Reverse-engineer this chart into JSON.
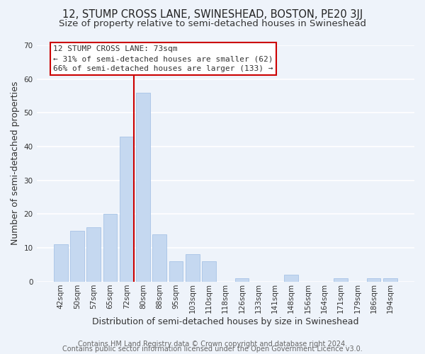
{
  "title": "12, STUMP CROSS LANE, SWINESHEAD, BOSTON, PE20 3JJ",
  "subtitle": "Size of property relative to semi-detached houses in Swineshead",
  "xlabel": "Distribution of semi-detached houses by size in Swineshead",
  "ylabel": "Number of semi-detached properties",
  "footer_line1": "Contains HM Land Registry data © Crown copyright and database right 2024.",
  "footer_line2": "Contains public sector information licensed under the Open Government Licence v3.0.",
  "bin_labels": [
    "42sqm",
    "50sqm",
    "57sqm",
    "65sqm",
    "72sqm",
    "80sqm",
    "88sqm",
    "95sqm",
    "103sqm",
    "110sqm",
    "118sqm",
    "126sqm",
    "133sqm",
    "141sqm",
    "148sqm",
    "156sqm",
    "164sqm",
    "171sqm",
    "179sqm",
    "186sqm",
    "194sqm"
  ],
  "bar_heights": [
    11,
    15,
    16,
    20,
    43,
    56,
    14,
    6,
    8,
    6,
    0,
    1,
    0,
    0,
    2,
    0,
    0,
    1,
    0,
    1,
    1
  ],
  "bar_color": "#c5d8f0",
  "bar_edge_color": "#aec8e8",
  "highlight_line_color": "#cc0000",
  "annotation_title": "12 STUMP CROSS LANE: 73sqm",
  "annotation_smaller": "← 31% of semi-detached houses are smaller (62)",
  "annotation_larger": "66% of semi-detached houses are larger (133) →",
  "annotation_box_edge": "#cc0000",
  "annotation_box_face": "#ffffff",
  "ylim": [
    0,
    70
  ],
  "yticks": [
    0,
    10,
    20,
    30,
    40,
    50,
    60,
    70
  ],
  "background_color": "#eef3fa",
  "grid_color": "#ffffff",
  "title_fontsize": 10.5,
  "subtitle_fontsize": 9.5,
  "axis_label_fontsize": 9,
  "tick_fontsize": 7.5,
  "footer_fontsize": 7
}
